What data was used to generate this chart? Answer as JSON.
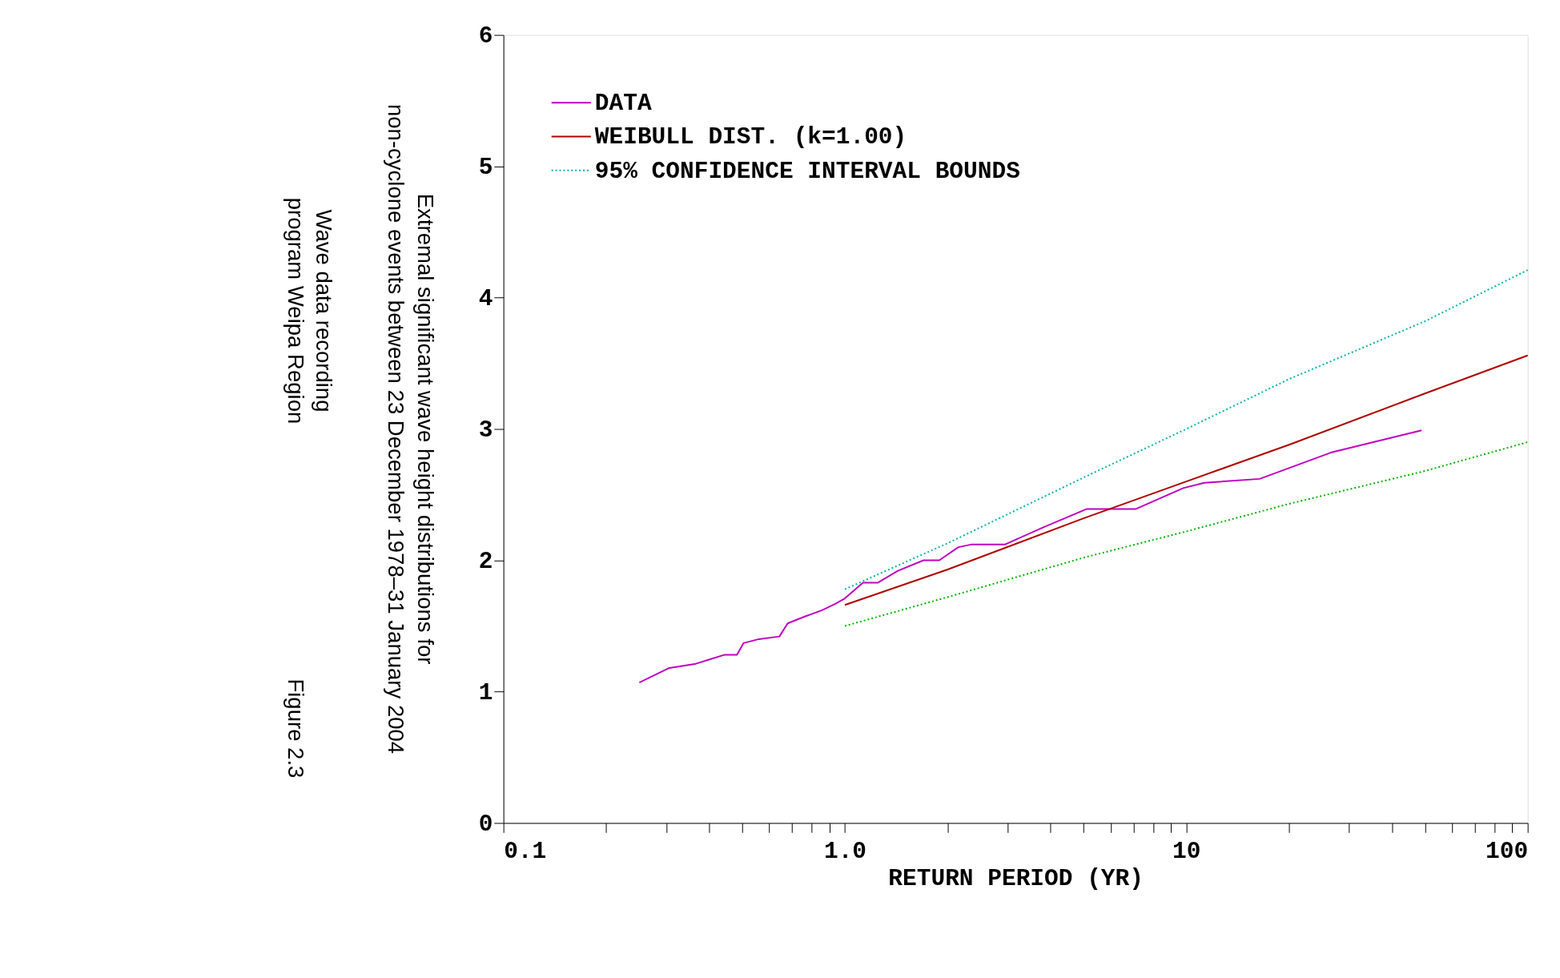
{
  "chart_data": {
    "type": "line",
    "title": "Extremal significant wave height distributions for non-cyclone events between 23 December 1978–31 January 2004",
    "subtitle": "Wave data recording program Weipa Region",
    "annotations": [
      "Figure 2.3"
    ],
    "xlabel": "RETURN PERIOD (YR)",
    "log": "x",
    "xlim": [
      0.1,
      100
    ],
    "ylim": [
      0,
      6
    ],
    "xticks": [
      {
        "value": 0.1,
        "label": "0.1"
      },
      {
        "value": 0.2,
        "label": null
      },
      {
        "value": 0.3,
        "label": null
      },
      {
        "value": 0.4,
        "label": null
      },
      {
        "value": 0.5,
        "label": null
      },
      {
        "value": 0.6,
        "label": null
      },
      {
        "value": 0.7,
        "label": null
      },
      {
        "value": 0.8,
        "label": null
      },
      {
        "value": 0.9,
        "label": null
      },
      {
        "value": 1,
        "label": "1.0"
      },
      {
        "value": 2,
        "label": null
      },
      {
        "value": 3,
        "label": null
      },
      {
        "value": 4,
        "label": null
      },
      {
        "value": 5,
        "label": null
      },
      {
        "value": 6,
        "label": null
      },
      {
        "value": 7,
        "label": null
      },
      {
        "value": 8,
        "label": null
      },
      {
        "value": 9,
        "label": null
      },
      10,
      {
        "value": 20,
        "label": null
      },
      {
        "value": 30,
        "label": null
      },
      {
        "value": 40,
        "label": null
      },
      {
        "value": 50,
        "label": null
      },
      {
        "value": 60,
        "label": null
      },
      {
        "value": 70,
        "label": null
      },
      {
        "value": 80,
        "label": null
      },
      {
        "value": 90,
        "label": null
      },
      100
    ],
    "yticks": [
      0,
      1,
      2,
      3,
      4,
      5,
      6
    ],
    "grid": false,
    "legend": "top left",
    "series": [
      {
        "name": "DATA",
        "color": "#c000c0",
        "line_style": "solid",
        "x": [
          0.25,
          0.306,
          0.363,
          0.407,
          0.443,
          0.483,
          0.505,
          0.56,
          0.643,
          0.68,
          0.76,
          0.857,
          0.94,
          1.0,
          1.13,
          1.25,
          1.43,
          1.7,
          1.89,
          2.15,
          2.34,
          2.94,
          3.8,
          5.1,
          7.1,
          9.8,
          11.3,
          16.4,
          26.5,
          48.9
        ],
        "values": [
          1.07,
          1.18,
          1.21,
          1.25,
          1.28,
          1.28,
          1.37,
          1.4,
          1.42,
          1.52,
          1.57,
          1.62,
          1.67,
          1.71,
          1.83,
          1.83,
          1.92,
          2.0,
          2.0,
          2.1,
          2.12,
          2.12,
          2.25,
          2.39,
          2.39,
          2.55,
          2.59,
          2.62,
          2.82,
          2.99
        ]
      },
      {
        "name": "WEIBULL DIST. (k=1.00)",
        "color": "#b00000",
        "line_style": "solid",
        "x": [
          1,
          2,
          5,
          10,
          20,
          50,
          100
        ],
        "values": [
          1.66,
          1.93,
          2.32,
          2.6,
          2.88,
          3.27,
          3.56
        ]
      },
      {
        "name": "95% CONFIDENCE INTERVAL BOUNDS",
        "color": "#00b0b0",
        "line_style": "dotted",
        "x": [
          1,
          2,
          5,
          10,
          20,
          50,
          100
        ],
        "values": [
          1.78,
          2.13,
          2.63,
          3.0,
          3.38,
          3.82,
          4.21
        ]
      },
      {
        "color": "#00b000",
        "line_style": "dotted",
        "x": [
          1,
          2,
          5,
          10,
          20,
          50,
          100
        ],
        "values": [
          1.5,
          1.72,
          2.02,
          2.22,
          2.43,
          2.68,
          2.9
        ]
      }
    ]
  }
}
